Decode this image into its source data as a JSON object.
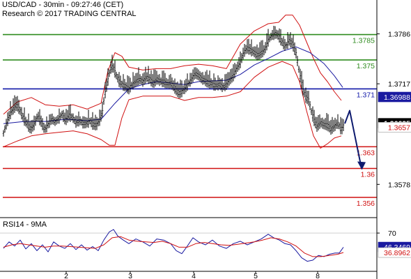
{
  "header": {
    "title": "USD/CAD - 30min - 09:27:46 (CET)",
    "copyright": "Research © 2017 TRADING CENTRAL"
  },
  "rsi_panel": {
    "title": "RSI14 - 9MA"
  },
  "chart_data": [
    {
      "type": "candlestick",
      "title": "USD/CAD - 30min - 09:27:46 (CET)",
      "x_tick_labels": [
        "2",
        "3",
        "4",
        "5",
        "8"
      ],
      "y_ticks": [
        1.3786,
        1.3717,
        1.3578
      ],
      "ylim": [
        1.3533,
        1.3828
      ],
      "grid": false,
      "levels": [
        {
          "label": "1.3785",
          "value": 1.3785,
          "color": "#2e8b1e"
        },
        {
          "label": "1.375",
          "value": 1.375,
          "color": "#2e8b1e"
        },
        {
          "label": "1.371",
          "value": 1.371,
          "color": "#1018a8"
        },
        {
          "label": "1.363",
          "value": 1.363,
          "color": "#d01010"
        },
        {
          "label": "1.36",
          "value": 1.36,
          "color": "#d01010"
        },
        {
          "label": "1.356",
          "value": 1.356,
          "color": "#d01010"
        }
      ],
      "badges": [
        {
          "label": "1.36988",
          "value": 1.36988,
          "bg": "#1a1aa0",
          "fg": "#ffffff"
        },
        {
          "label": "1.36625",
          "value": 1.36625,
          "bg": "#000000",
          "fg": "#ffffff"
        },
        {
          "label": "1.3657",
          "value": 1.3657,
          "bg": "#ffffff",
          "fg": "#d01010"
        }
      ],
      "price_path": [
        [
          0,
          1.365
        ],
        [
          4,
          1.3662
        ],
        [
          9,
          1.3676
        ],
        [
          14,
          1.3684
        ],
        [
          19,
          1.369
        ],
        [
          24,
          1.3681
        ],
        [
          29,
          1.367
        ],
        [
          34,
          1.3663
        ],
        [
          39,
          1.3656
        ],
        [
          44,
          1.3662
        ],
        [
          49,
          1.3674
        ],
        [
          54,
          1.3666
        ],
        [
          59,
          1.3655
        ],
        [
          64,
          1.3662
        ],
        [
          69,
          1.367
        ],
        [
          74,
          1.3666
        ],
        [
          79,
          1.367
        ],
        [
          84,
          1.3676
        ],
        [
          89,
          1.3668
        ],
        [
          94,
          1.3675
        ],
        [
          99,
          1.3672
        ],
        [
          104,
          1.3665
        ],
        [
          109,
          1.3668
        ],
        [
          114,
          1.3664
        ],
        [
          119,
          1.3664
        ],
        [
          124,
          1.3667
        ],
        [
          129,
          1.3662
        ],
        [
          134,
          1.3662
        ],
        [
          139,
          1.367
        ],
        [
          142,
          1.368
        ],
        [
          145,
          1.3702
        ],
        [
          148,
          1.3715
        ],
        [
          152,
          1.3733
        ],
        [
          155,
          1.3743
        ],
        [
          158,
          1.374
        ],
        [
          162,
          1.373
        ],
        [
          166,
          1.3722
        ],
        [
          170,
          1.3718
        ],
        [
          175,
          1.3715
        ],
        [
          180,
          1.3712
        ],
        [
          185,
          1.3718
        ],
        [
          190,
          1.3722
        ],
        [
          195,
          1.3725
        ],
        [
          200,
          1.3722
        ],
        [
          205,
          1.3728
        ],
        [
          210,
          1.3725
        ],
        [
          215,
          1.372
        ],
        [
          220,
          1.3725
        ],
        [
          225,
          1.3722
        ],
        [
          230,
          1.3722
        ],
        [
          235,
          1.3718
        ],
        [
          240,
          1.372
        ],
        [
          245,
          1.3714
        ],
        [
          248,
          1.371
        ],
        [
          252,
          1.3706
        ],
        [
          256,
          1.3708
        ],
        [
          260,
          1.3712
        ],
        [
          265,
          1.3718
        ],
        [
          270,
          1.3725
        ],
        [
          275,
          1.3733
        ],
        [
          280,
          1.373
        ],
        [
          285,
          1.3725
        ],
        [
          290,
          1.3723
        ],
        [
          295,
          1.372
        ],
        [
          300,
          1.3718
        ],
        [
          305,
          1.3716
        ],
        [
          310,
          1.3718
        ],
        [
          315,
          1.3714
        ],
        [
          320,
          1.3718
        ],
        [
          325,
          1.3725
        ],
        [
          330,
          1.373
        ],
        [
          335,
          1.374
        ],
        [
          340,
          1.3748
        ],
        [
          345,
          1.3762
        ],
        [
          350,
          1.3768
        ],
        [
          355,
          1.3765
        ],
        [
          360,
          1.3762
        ],
        [
          365,
          1.3758
        ],
        [
          370,
          1.3762
        ],
        [
          375,
          1.3765
        ],
        [
          380,
          1.3778
        ],
        [
          385,
          1.3785
        ],
        [
          390,
          1.3788
        ],
        [
          395,
          1.3785
        ],
        [
          400,
          1.3776
        ],
        [
          405,
          1.377
        ],
        [
          410,
          1.3778
        ],
        [
          415,
          1.3774
        ],
        [
          420,
          1.376
        ],
        [
          423,
          1.3744
        ],
        [
          426,
          1.3728
        ],
        [
          430,
          1.371
        ],
        [
          434,
          1.37
        ],
        [
          438,
          1.3696
        ],
        [
          442,
          1.368
        ],
        [
          446,
          1.3668
        ],
        [
          450,
          1.366
        ],
        [
          455,
          1.3665
        ],
        [
          460,
          1.3662
        ],
        [
          465,
          1.3662
        ],
        [
          470,
          1.3656
        ],
        [
          475,
          1.366
        ],
        [
          480,
          1.3664
        ],
        [
          485,
          1.3655
        ],
        [
          489,
          1.3662
        ]
      ],
      "bollinger_upper": [
        [
          0,
          1.3675
        ],
        [
          20,
          1.3692
        ],
        [
          40,
          1.3698
        ],
        [
          60,
          1.3688
        ],
        [
          80,
          1.3686
        ],
        [
          100,
          1.3688
        ],
        [
          120,
          1.3682
        ],
        [
          140,
          1.369
        ],
        [
          150,
          1.3735
        ],
        [
          160,
          1.376
        ],
        [
          170,
          1.3755
        ],
        [
          180,
          1.374
        ],
        [
          200,
          1.3736
        ],
        [
          220,
          1.3738
        ],
        [
          240,
          1.3738
        ],
        [
          260,
          1.3742
        ],
        [
          280,
          1.3744
        ],
        [
          300,
          1.3742
        ],
        [
          320,
          1.3738
        ],
        [
          340,
          1.3772
        ],
        [
          360,
          1.379
        ],
        [
          380,
          1.38
        ],
        [
          395,
          1.3802
        ],
        [
          405,
          1.3812
        ],
        [
          415,
          1.3812
        ],
        [
          425,
          1.3798
        ],
        [
          435,
          1.3775
        ],
        [
          445,
          1.3752
        ],
        [
          455,
          1.3732
        ],
        [
          465,
          1.372
        ],
        [
          475,
          1.3706
        ],
        [
          485,
          1.3694
        ]
      ],
      "bollinger_lower": [
        [
          0,
          1.363
        ],
        [
          20,
          1.3638
        ],
        [
          40,
          1.3645
        ],
        [
          60,
          1.3648
        ],
        [
          80,
          1.365
        ],
        [
          100,
          1.3652
        ],
        [
          120,
          1.3648
        ],
        [
          140,
          1.364
        ],
        [
          152,
          1.3632
        ],
        [
          160,
          1.3632
        ],
        [
          170,
          1.367
        ],
        [
          180,
          1.3695
        ],
        [
          200,
          1.37
        ],
        [
          220,
          1.37
        ],
        [
          240,
          1.37
        ],
        [
          260,
          1.3694
        ],
        [
          280,
          1.3698
        ],
        [
          300,
          1.3698
        ],
        [
          320,
          1.37
        ],
        [
          340,
          1.3706
        ],
        [
          360,
          1.3726
        ],
        [
          380,
          1.374
        ],
        [
          400,
          1.3748
        ],
        [
          415,
          1.3742
        ],
        [
          425,
          1.372
        ],
        [
          435,
          1.368
        ],
        [
          445,
          1.3645
        ],
        [
          455,
          1.3628
        ],
        [
          465,
          1.3634
        ],
        [
          475,
          1.3642
        ],
        [
          485,
          1.3645
        ]
      ],
      "moving_average": [
        [
          0,
          1.3662
        ],
        [
          30,
          1.3665
        ],
        [
          60,
          1.3665
        ],
        [
          90,
          1.3668
        ],
        [
          120,
          1.3666
        ],
        [
          140,
          1.3668
        ],
        [
          160,
          1.369
        ],
        [
          180,
          1.371
        ],
        [
          200,
          1.3716
        ],
        [
          220,
          1.372
        ],
        [
          240,
          1.3718
        ],
        [
          260,
          1.3716
        ],
        [
          280,
          1.372
        ],
        [
          300,
          1.3721
        ],
        [
          320,
          1.3722
        ],
        [
          340,
          1.373
        ],
        [
          360,
          1.3743
        ],
        [
          380,
          1.3752
        ],
        [
          400,
          1.3762
        ],
        [
          420,
          1.3768
        ],
        [
          440,
          1.376
        ],
        [
          460,
          1.3745
        ],
        [
          475,
          1.3728
        ],
        [
          487,
          1.3712
        ]
      ],
      "forecast_arrow": [
        [
          490,
          1.3662
        ],
        [
          497,
          1.368
        ],
        [
          514,
          1.36
        ]
      ]
    },
    {
      "type": "line",
      "title": "RSI14 - 9MA",
      "y_ticks": [
        70
      ],
      "ylim": [
        5,
        95
      ],
      "badges": [
        {
          "label": "46.3469",
          "value": 46.3469,
          "bg": "#1a1aa0",
          "fg": "#ffffff"
        },
        {
          "label": "36.8962",
          "value": 36.8962,
          "bg": "#ffffff",
          "fg": "#d01010"
        }
      ],
      "series": [
        {
          "color": "#1a1aa0",
          "values": [
            [
              0,
              44
            ],
            [
              8,
              55
            ],
            [
              16,
              48
            ],
            [
              24,
              58
            ],
            [
              32,
              43
            ],
            [
              40,
              52
            ],
            [
              48,
              40
            ],
            [
              56,
              50
            ],
            [
              64,
              38
            ],
            [
              72,
              55
            ],
            [
              80,
              48
            ],
            [
              88,
              44
            ],
            [
              96,
              52
            ],
            [
              104,
              42
            ],
            [
              112,
              50
            ],
            [
              120,
              41
            ],
            [
              128,
              47
            ],
            [
              136,
              40
            ],
            [
              144,
              58
            ],
            [
              152,
              72
            ],
            [
              158,
              76
            ],
            [
              164,
              65
            ],
            [
              172,
              58
            ],
            [
              180,
              52
            ],
            [
              190,
              60
            ],
            [
              200,
              55
            ],
            [
              210,
              48
            ],
            [
              220,
              60
            ],
            [
              230,
              58
            ],
            [
              240,
              52
            ],
            [
              248,
              40
            ],
            [
              256,
              35
            ],
            [
              264,
              48
            ],
            [
              272,
              62
            ],
            [
              280,
              55
            ],
            [
              290,
              50
            ],
            [
              300,
              58
            ],
            [
              310,
              48
            ],
            [
              320,
              44
            ],
            [
              330,
              52
            ],
            [
              340,
              56
            ],
            [
              350,
              50
            ],
            [
              360,
              55
            ],
            [
              370,
              60
            ],
            [
              380,
              68
            ],
            [
              388,
              62
            ],
            [
              396,
              58
            ],
            [
              404,
              52
            ],
            [
              412,
              50
            ],
            [
              420,
              40
            ],
            [
              428,
              28
            ],
            [
              436,
              22
            ],
            [
              444,
              24
            ],
            [
              452,
              32
            ],
            [
              460,
              30
            ],
            [
              468,
              34
            ],
            [
              476,
              36
            ],
            [
              482,
              36
            ],
            [
              488,
              46
            ]
          ]
        },
        {
          "color": "#d01010",
          "values": [
            [
              0,
              46
            ],
            [
              12,
              50
            ],
            [
              24,
              52
            ],
            [
              36,
              50
            ],
            [
              48,
              48
            ],
            [
              60,
              46
            ],
            [
              72,
              48
            ],
            [
              84,
              48
            ],
            [
              96,
              47
            ],
            [
              108,
              46
            ],
            [
              120,
              45
            ],
            [
              132,
              44
            ],
            [
              144,
              50
            ],
            [
              156,
              62
            ],
            [
              168,
              64
            ],
            [
              180,
              58
            ],
            [
              192,
              56
            ],
            [
              204,
              55
            ],
            [
              216,
              54
            ],
            [
              228,
              56
            ],
            [
              240,
              52
            ],
            [
              252,
              46
            ],
            [
              264,
              46
            ],
            [
              276,
              52
            ],
            [
              288,
              54
            ],
            [
              300,
              52
            ],
            [
              312,
              50
            ],
            [
              324,
              49
            ],
            [
              336,
              51
            ],
            [
              348,
              53
            ],
            [
              360,
              55
            ],
            [
              372,
              58
            ],
            [
              384,
              62
            ],
            [
              396,
              60
            ],
            [
              408,
              55
            ],
            [
              420,
              48
            ],
            [
              432,
              36
            ],
            [
              444,
              30
            ],
            [
              456,
              30
            ],
            [
              468,
              32
            ],
            [
              480,
              34
            ],
            [
              488,
              37
            ]
          ]
        }
      ]
    }
  ]
}
